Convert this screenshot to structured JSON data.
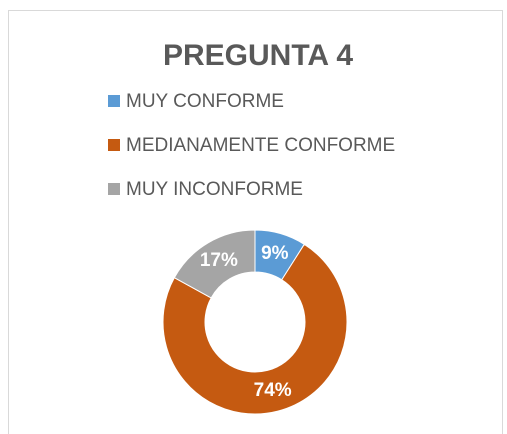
{
  "chart_data": {
    "type": "donut",
    "title": "PREGUNTA 4",
    "categories": [
      "MUY CONFORME",
      "MEDIANAMENTE CONFORME",
      "MUY INCONFORME"
    ],
    "values": [
      9,
      74,
      17
    ],
    "value_labels": [
      "9%",
      "74%",
      "17%"
    ],
    "colors": [
      "#5b9bd5",
      "#c55a11",
      "#a5a5a5"
    ],
    "legend": "top"
  }
}
